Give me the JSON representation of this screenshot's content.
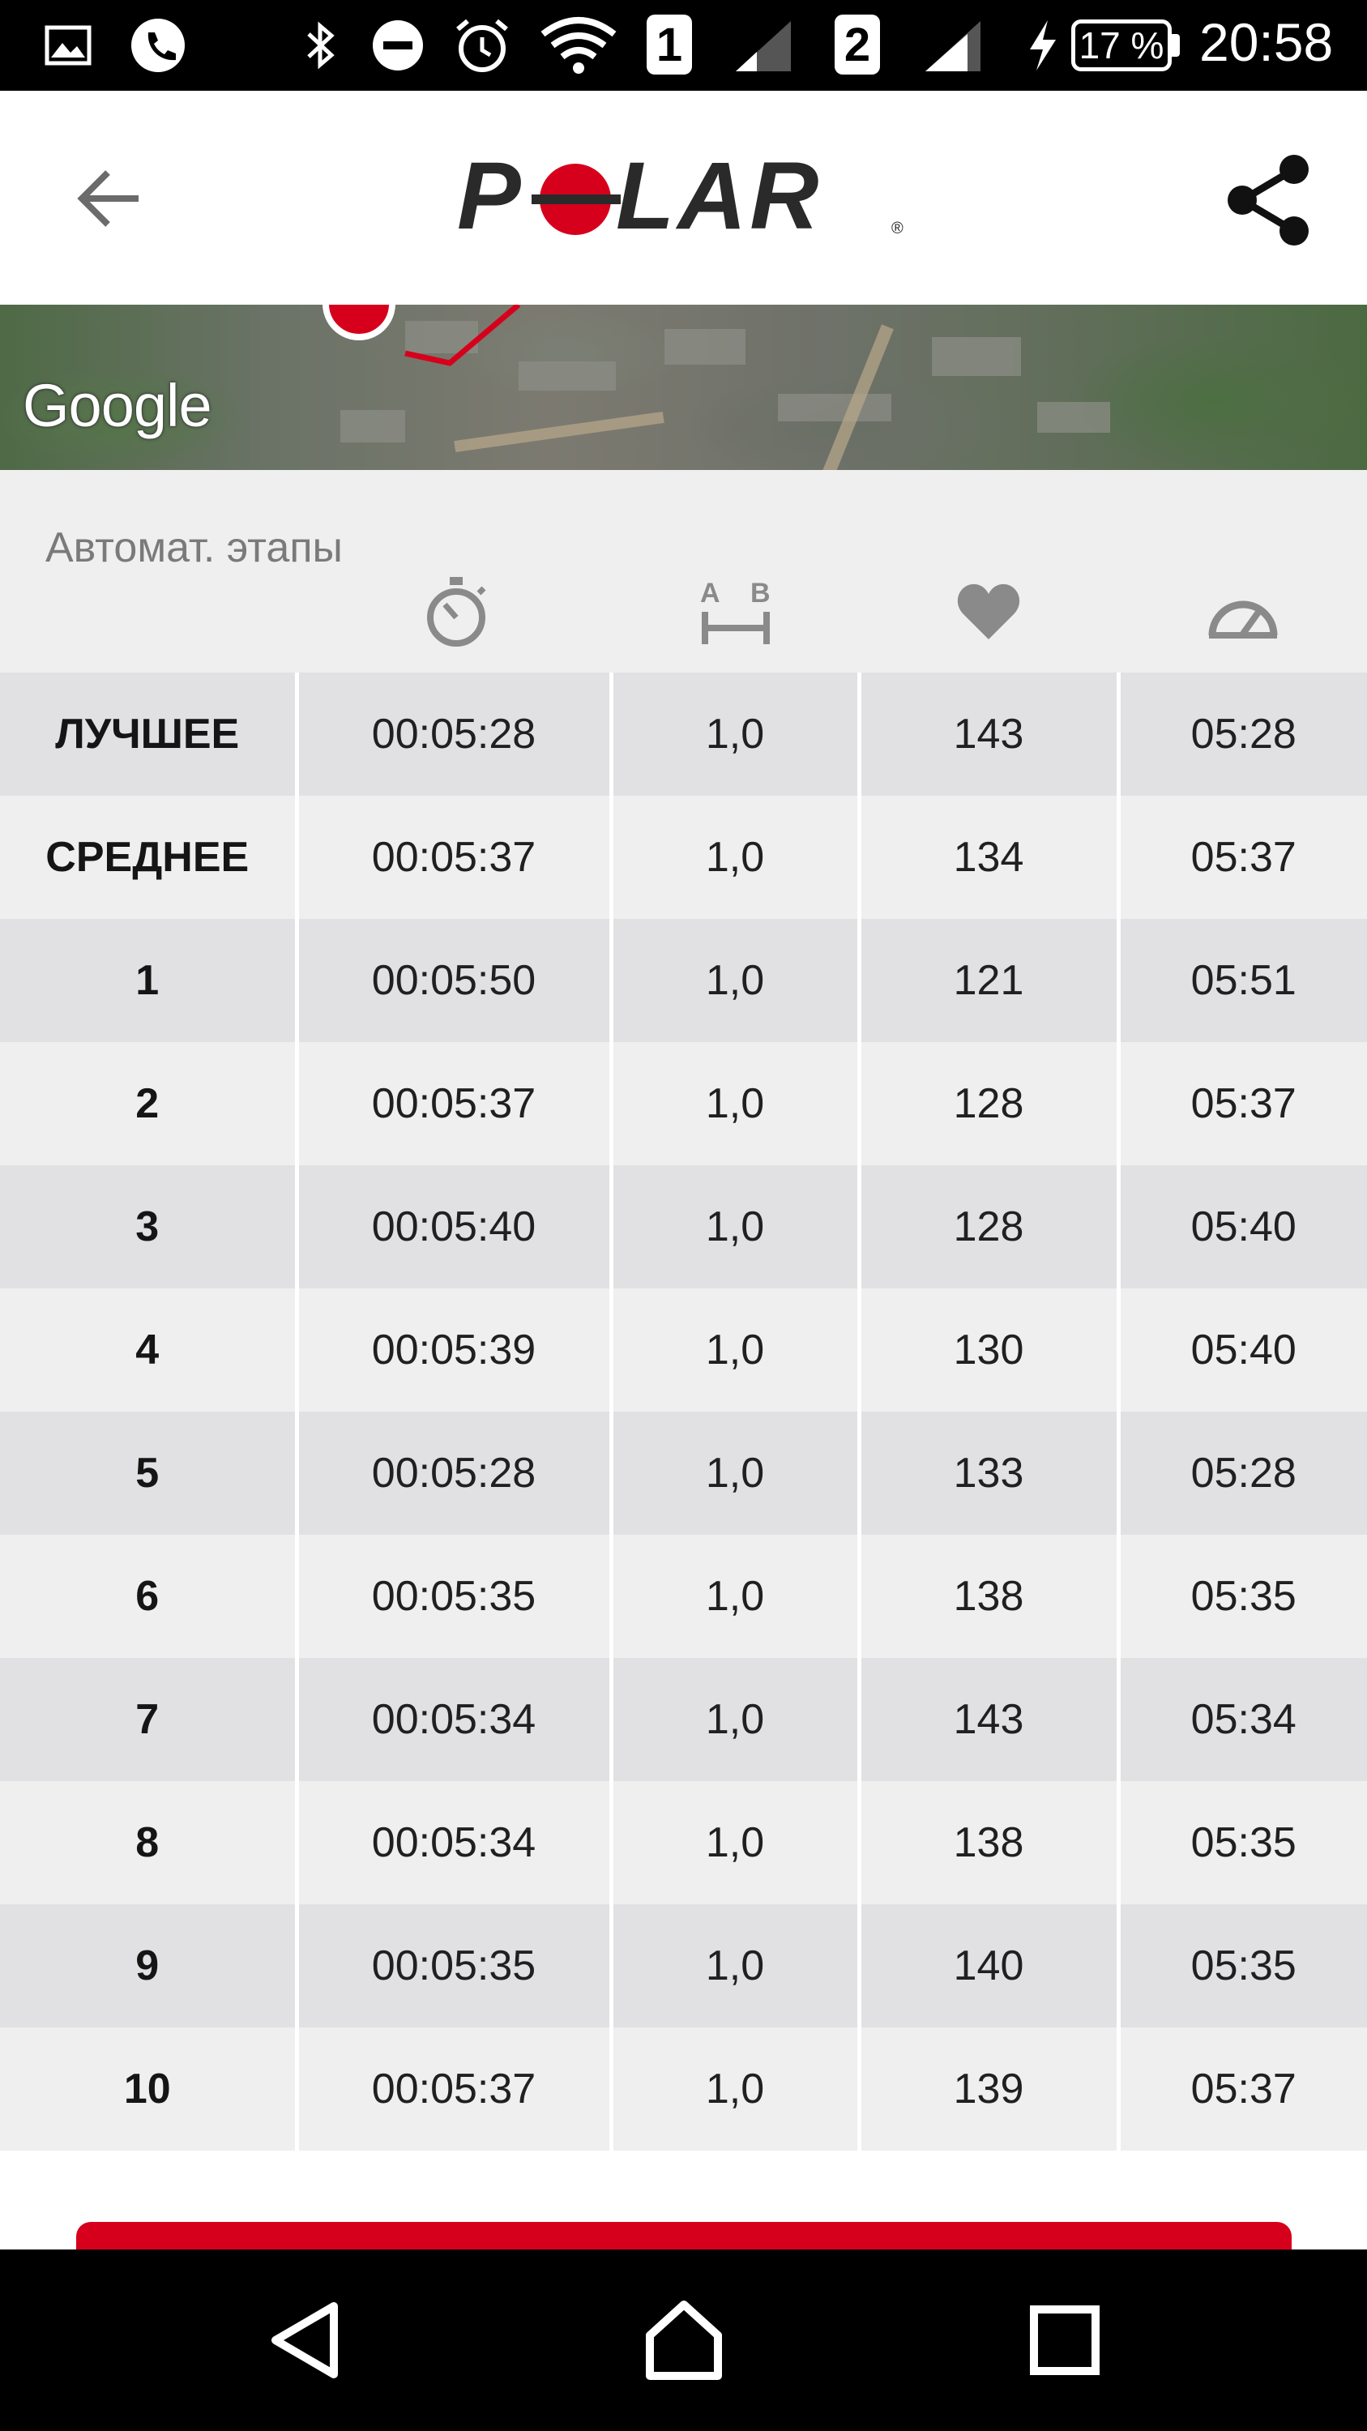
{
  "status_bar": {
    "sim1": "1",
    "sim2": "2",
    "battery": "17 %",
    "time": "20:58",
    "icons": [
      "gallery-icon",
      "phone-icon",
      "bluetooth-icon",
      "do-not-disturb-icon",
      "alarm-icon",
      "wifi-icon",
      "signal-icon",
      "charging-icon"
    ]
  },
  "app_bar": {
    "logo_text": "POLAR",
    "back_icon": "arrow-back-icon",
    "share_icon": "share-icon"
  },
  "map": {
    "watermark": "Google"
  },
  "laps_section": {
    "title": "Автомат. этапы",
    "column_icons": [
      "stopwatch-icon",
      "distance-icon",
      "heart-icon",
      "speedometer-icon"
    ],
    "rows": [
      {
        "label": "ЛУЧШЕЕ",
        "time": "00:05:28",
        "distance": "1,0",
        "hr": "143",
        "pace": "05:28"
      },
      {
        "label": "СРЕДНЕЕ",
        "time": "00:05:37",
        "distance": "1,0",
        "hr": "134",
        "pace": "05:37"
      },
      {
        "label": "1",
        "time": "00:05:50",
        "distance": "1,0",
        "hr": "121",
        "pace": "05:51"
      },
      {
        "label": "2",
        "time": "00:05:37",
        "distance": "1,0",
        "hr": "128",
        "pace": "05:37"
      },
      {
        "label": "3",
        "time": "00:05:40",
        "distance": "1,0",
        "hr": "128",
        "pace": "05:40"
      },
      {
        "label": "4",
        "time": "00:05:39",
        "distance": "1,0",
        "hr": "130",
        "pace": "05:40"
      },
      {
        "label": "5",
        "time": "00:05:28",
        "distance": "1,0",
        "hr": "133",
        "pace": "05:28"
      },
      {
        "label": "6",
        "time": "00:05:35",
        "distance": "1,0",
        "hr": "138",
        "pace": "05:35"
      },
      {
        "label": "7",
        "time": "00:05:34",
        "distance": "1,0",
        "hr": "143",
        "pace": "05:34"
      },
      {
        "label": "8",
        "time": "00:05:34",
        "distance": "1,0",
        "hr": "138",
        "pace": "05:35"
      },
      {
        "label": "9",
        "time": "00:05:35",
        "distance": "1,0",
        "hr": "140",
        "pace": "05:35"
      },
      {
        "label": "10",
        "time": "00:05:37",
        "distance": "1,0",
        "hr": "139",
        "pace": "05:37"
      }
    ]
  },
  "nav_bar": {
    "icons": [
      "nav-back-icon",
      "nav-home-icon",
      "nav-recents-icon"
    ]
  },
  "colors": {
    "brand_red": "#d6001c",
    "row_dark": "#e1e1e3",
    "row_light": "#efefef"
  }
}
